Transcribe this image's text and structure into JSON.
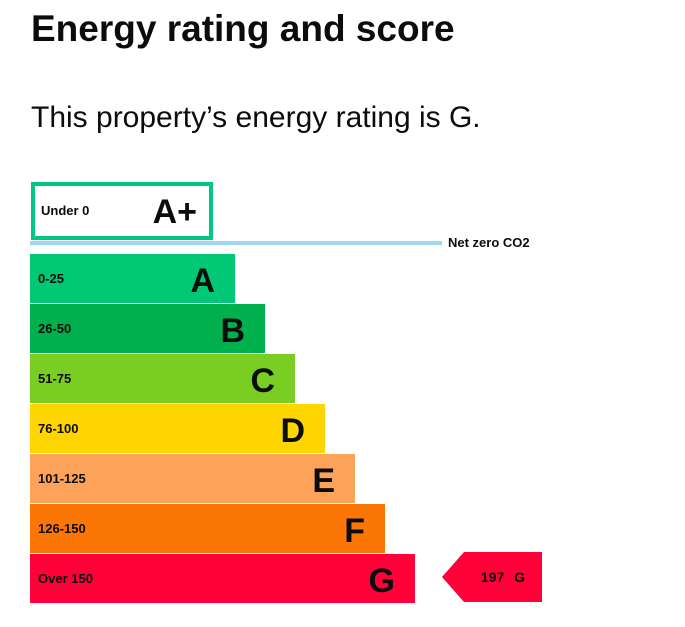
{
  "heading": "Energy rating and score",
  "summary": "This property’s energy rating is G.",
  "chart_data": {
    "type": "bar",
    "title": "",
    "aplus": {
      "range": "Under 0",
      "letter": "A+",
      "color": "#00c781"
    },
    "net_zero_label": "Net zero CO2",
    "net_zero_color": "#9ed7f0",
    "bands": [
      {
        "range": "0-25",
        "letter": "A",
        "color": "#00c875"
      },
      {
        "range": "26-50",
        "letter": "B",
        "color": "#00b04c"
      },
      {
        "range": "51-75",
        "letter": "C",
        "color": "#7acd22"
      },
      {
        "range": "76-100",
        "letter": "D",
        "color": "#ffd500"
      },
      {
        "range": "101-125",
        "letter": "E",
        "color": "#fca259"
      },
      {
        "range": "126-150",
        "letter": "F",
        "color": "#fc7606"
      },
      {
        "range": "Over 150",
        "letter": "G",
        "color": "#ff0038"
      }
    ],
    "current": {
      "score": 197,
      "letter": "G",
      "label": "197 G",
      "color": "#ff0038"
    }
  }
}
